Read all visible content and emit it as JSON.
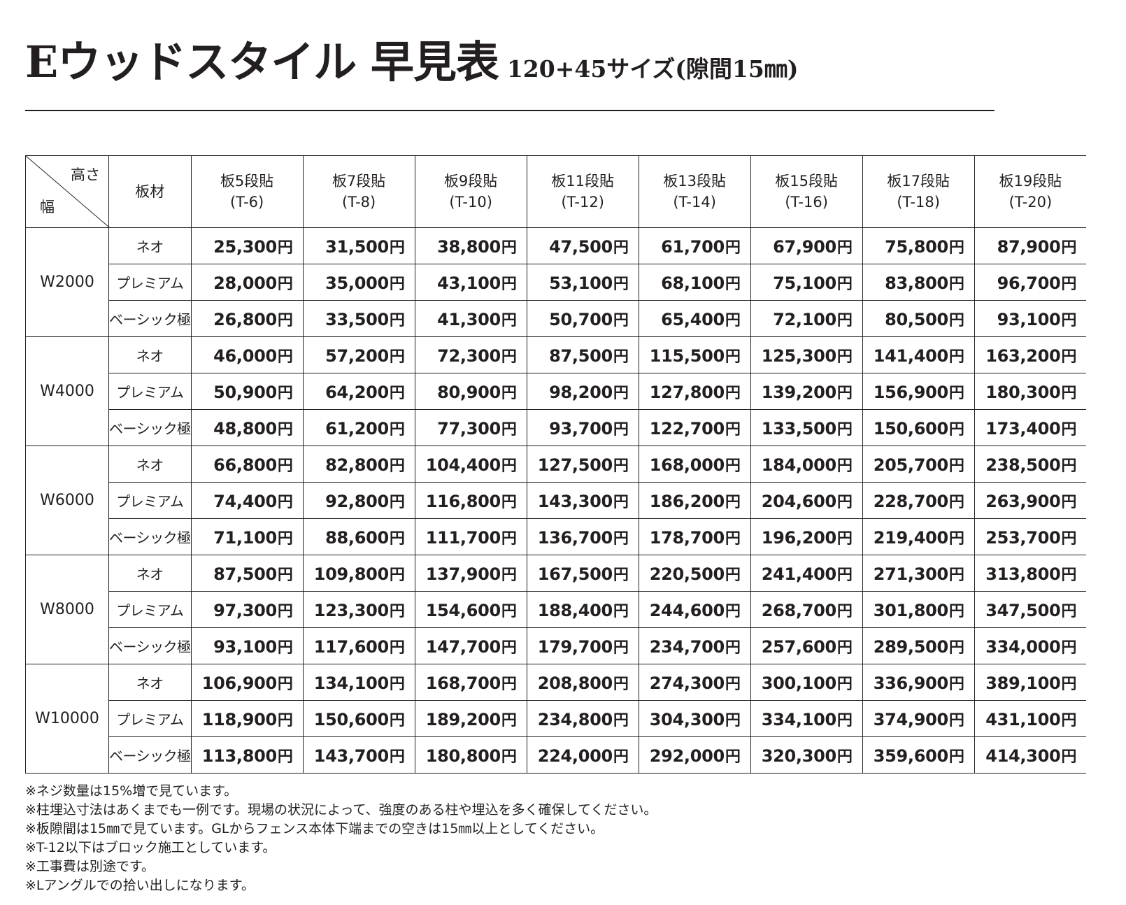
{
  "title": {
    "main": "Eウッドスタイル 早見表",
    "sub": "120+45サイズ(隙間15㎜)"
  },
  "table": {
    "corner_height_label": "高さ",
    "corner_width_label": "幅",
    "material_header": "板材",
    "columns": [
      {
        "label": "板5段貼",
        "code": "(T-6)"
      },
      {
        "label": "板7段貼",
        "code": "(T-8)"
      },
      {
        "label": "板9段貼",
        "code": "(T-10)"
      },
      {
        "label": "板11段貼",
        "code": "(T-12)"
      },
      {
        "label": "板13段貼",
        "code": "(T-14)"
      },
      {
        "label": "板15段貼",
        "code": "(T-16)"
      },
      {
        "label": "板17段貼",
        "code": "(T-18)"
      },
      {
        "label": "板19段貼",
        "code": "(T-20)"
      }
    ],
    "yen": "円",
    "groups": [
      {
        "width": "W2000",
        "rows": [
          {
            "material": "ネオ",
            "prices": [
              "25,300",
              "31,500",
              "38,800",
              "47,500",
              "61,700",
              "67,900",
              "75,800",
              "87,900"
            ]
          },
          {
            "material": "プレミアム",
            "prices": [
              "28,000",
              "35,000",
              "43,100",
              "53,100",
              "68,100",
              "75,100",
              "83,800",
              "96,700"
            ]
          },
          {
            "material": "ベーシック極",
            "prices": [
              "26,800",
              "33,500",
              "41,300",
              "50,700",
              "65,400",
              "72,100",
              "80,500",
              "93,100"
            ]
          }
        ]
      },
      {
        "width": "W4000",
        "rows": [
          {
            "material": "ネオ",
            "prices": [
              "46,000",
              "57,200",
              "72,300",
              "87,500",
              "115,500",
              "125,300",
              "141,400",
              "163,200"
            ]
          },
          {
            "material": "プレミアム",
            "prices": [
              "50,900",
              "64,200",
              "80,900",
              "98,200",
              "127,800",
              "139,200",
              "156,900",
              "180,300"
            ]
          },
          {
            "material": "ベーシック極",
            "prices": [
              "48,800",
              "61,200",
              "77,300",
              "93,700",
              "122,700",
              "133,500",
              "150,600",
              "173,400"
            ]
          }
        ]
      },
      {
        "width": "W6000",
        "rows": [
          {
            "material": "ネオ",
            "prices": [
              "66,800",
              "82,800",
              "104,400",
              "127,500",
              "168,000",
              "184,000",
              "205,700",
              "238,500"
            ]
          },
          {
            "material": "プレミアム",
            "prices": [
              "74,400",
              "92,800",
              "116,800",
              "143,300",
              "186,200",
              "204,600",
              "228,700",
              "263,900"
            ]
          },
          {
            "material": "ベーシック極",
            "prices": [
              "71,100",
              "88,600",
              "111,700",
              "136,700",
              "178,700",
              "196,200",
              "219,400",
              "253,700"
            ]
          }
        ]
      },
      {
        "width": "W8000",
        "rows": [
          {
            "material": "ネオ",
            "prices": [
              "87,500",
              "109,800",
              "137,900",
              "167,500",
              "220,500",
              "241,400",
              "271,300",
              "313,800"
            ]
          },
          {
            "material": "プレミアム",
            "prices": [
              "97,300",
              "123,300",
              "154,600",
              "188,400",
              "244,600",
              "268,700",
              "301,800",
              "347,500"
            ]
          },
          {
            "material": "ベーシック極",
            "prices": [
              "93,100",
              "117,600",
              "147,700",
              "179,700",
              "234,700",
              "257,600",
              "289,500",
              "334,000"
            ]
          }
        ]
      },
      {
        "width": "W10000",
        "rows": [
          {
            "material": "ネオ",
            "prices": [
              "106,900",
              "134,100",
              "168,700",
              "208,800",
              "274,300",
              "300,100",
              "336,900",
              "389,100"
            ]
          },
          {
            "material": "プレミアム",
            "prices": [
              "118,900",
              "150,600",
              "189,200",
              "234,800",
              "304,300",
              "334,100",
              "374,900",
              "431,100"
            ]
          },
          {
            "material": "ベーシック極",
            "prices": [
              "113,800",
              "143,700",
              "180,800",
              "224,000",
              "292,000",
              "320,300",
              "359,600",
              "414,300"
            ]
          }
        ]
      }
    ]
  },
  "notes": [
    "※ネジ数量は15%増で見ています。",
    "※柱埋込寸法はあくまでも一例です。現場の状況によって、強度のある柱や埋込を多く確保してください。",
    "※板隙間は15㎜で見ています。GLからフェンス本体下端までの空きは15㎜以上としてください。",
    "※T-12以下はブロック施工としています。",
    "※工事費は別途です。",
    "※Lアングルでの拾い出しになります。"
  ]
}
